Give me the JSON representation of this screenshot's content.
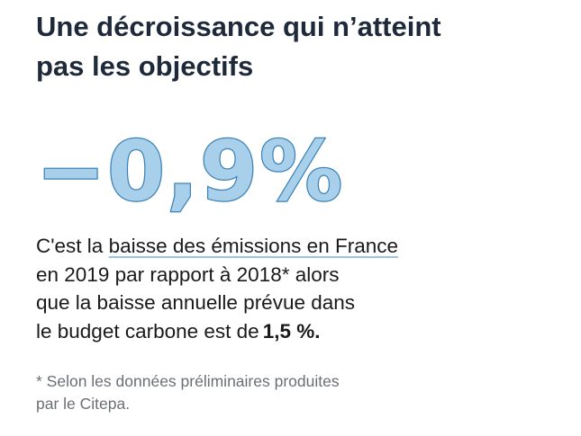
{
  "title": {
    "line1": "Une décroissance qui n’atteint",
    "line2": "pas les objectifs"
  },
  "figure": {
    "value": "−0,9%",
    "fill_color": "#a9d0ea",
    "stroke_color": "#3b82b8"
  },
  "body": {
    "part1": "C'est la ",
    "highlight": "baisse des émissions en France",
    "part2": "en 2019 par rapport à 2018* alors",
    "part3": "que la baisse annuelle prévue dans",
    "part4": "le budget carbone est de",
    "value": "1,5 %."
  },
  "footnote": {
    "line1": "* Selon les données préliminaires produites",
    "line2": "par le Citepa."
  }
}
